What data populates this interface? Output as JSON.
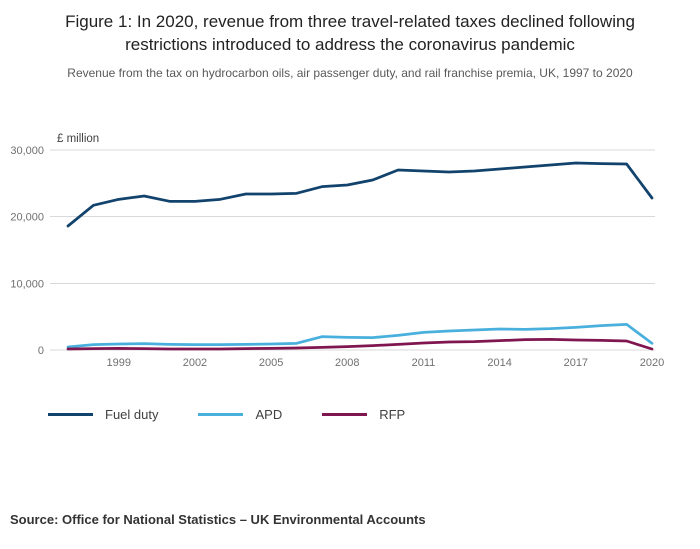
{
  "header": {
    "title": "Figure 1: In 2020, revenue from three travel-related taxes declined following restrictions introduced to address the coronavirus pandemic",
    "subtitle": "Revenue from the tax on hydrocarbon oils, air passenger duty, and rail franchise premia, UK, 1997 to 2020"
  },
  "footer": {
    "source": "Source: Office for National Statistics – UK Environmental Accounts"
  },
  "chart_data": {
    "type": "line",
    "unit_label": "£ million",
    "x": [
      1997,
      1998,
      1999,
      2000,
      2001,
      2002,
      2003,
      2004,
      2005,
      2006,
      2007,
      2008,
      2009,
      2010,
      2011,
      2012,
      2013,
      2014,
      2015,
      2016,
      2017,
      2018,
      2019,
      2020
    ],
    "x_ticks": [
      1999,
      2002,
      2005,
      2008,
      2011,
      2014,
      2017,
      2020
    ],
    "y_ticks": [
      0,
      10000,
      20000,
      30000
    ],
    "y_tick_labels": [
      "0",
      "10,000",
      "20,000",
      "30,000"
    ],
    "ylim": [
      0,
      30000
    ],
    "grid": true,
    "legend_position": "bottom",
    "colors": {
      "fuel_duty": "#12436D",
      "apd": "#49B0DD",
      "rfp": "#801650",
      "gridline": "#d9d9d9"
    },
    "series": [
      {
        "name": "Fuel duty",
        "color": "#12436D",
        "values": [
          18600,
          21700,
          22600,
          23100,
          22300,
          22300,
          22600,
          23400,
          23400,
          23500,
          24500,
          24750,
          25500,
          27000,
          26850,
          26700,
          26850,
          27150,
          27450,
          27750,
          28050,
          27950,
          27900,
          22800
        ]
      },
      {
        "name": "APD",
        "color": "#49B0DD",
        "values": [
          450,
          800,
          900,
          950,
          850,
          800,
          800,
          850,
          900,
          1000,
          2000,
          1900,
          1850,
          2200,
          2650,
          2850,
          3000,
          3150,
          3100,
          3200,
          3400,
          3650,
          3850,
          1000
        ]
      },
      {
        "name": "RFP",
        "color": "#801650",
        "values": [
          150,
          200,
          250,
          200,
          150,
          150,
          150,
          200,
          250,
          300,
          400,
          500,
          650,
          850,
          1050,
          1200,
          1250,
          1400,
          1550,
          1600,
          1500,
          1450,
          1350,
          150
        ]
      }
    ]
  }
}
